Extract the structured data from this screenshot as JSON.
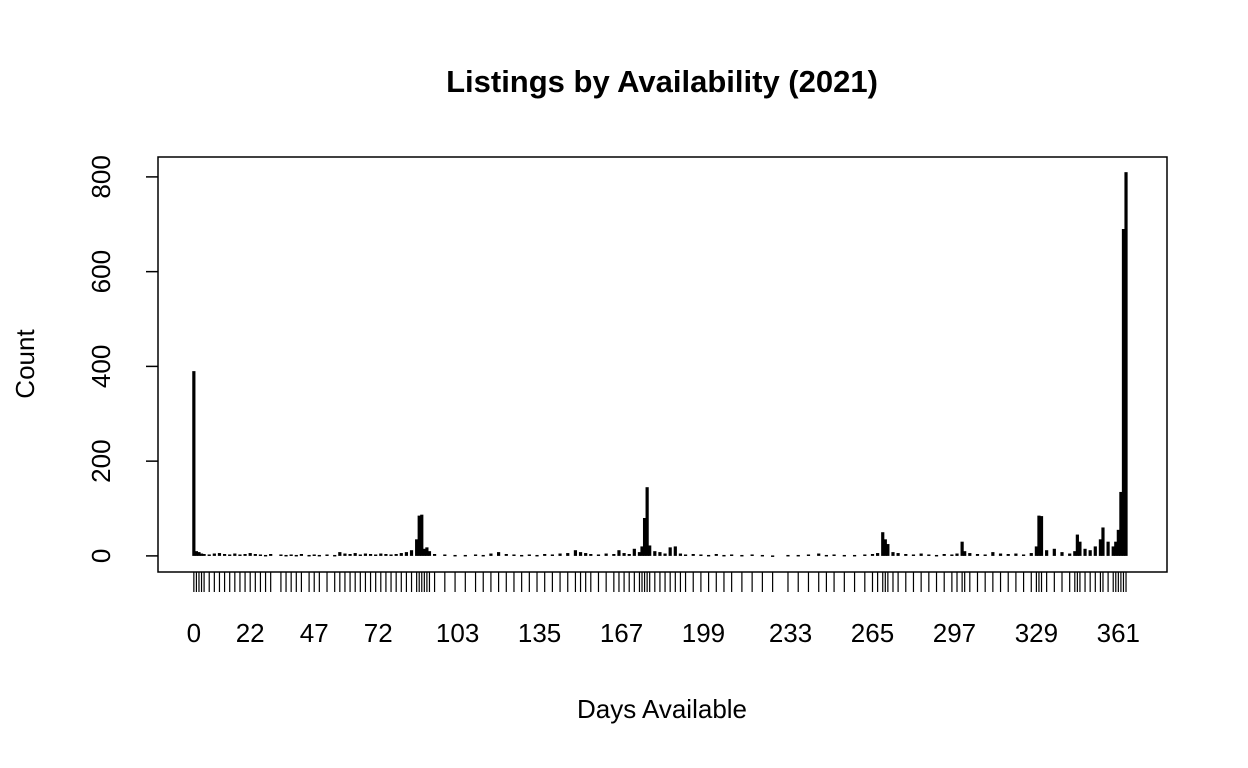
{
  "chart_data": {
    "type": "bar",
    "title": "Listings by Availability (2021)",
    "x_label": "Days Available",
    "y_label": "Count",
    "x": [
      0,
      1,
      2,
      3,
      4,
      6,
      8,
      10,
      12,
      14,
      16,
      18,
      20,
      22,
      24,
      26,
      28,
      30,
      34,
      36,
      38,
      40,
      42,
      45,
      47,
      49,
      52,
      55,
      57,
      59,
      61,
      63,
      65,
      67,
      69,
      71,
      73,
      75,
      77,
      79,
      81,
      83,
      85,
      87,
      88,
      89,
      90,
      91,
      92,
      94,
      98,
      102,
      106,
      110,
      113,
      116,
      119,
      122,
      125,
      128,
      131,
      134,
      137,
      140,
      143,
      146,
      149,
      151,
      153,
      155,
      158,
      161,
      164,
      166,
      168,
      170,
      172,
      174,
      175,
      176,
      177,
      178,
      180,
      182,
      184,
      186,
      188,
      190,
      192,
      195,
      198,
      201,
      204,
      207,
      210,
      214,
      218,
      222,
      226,
      232,
      236,
      240,
      244,
      247,
      250,
      254,
      258,
      262,
      265,
      267,
      269,
      270,
      271,
      273,
      275,
      278,
      281,
      284,
      287,
      290,
      293,
      296,
      298,
      300,
      301,
      303,
      306,
      309,
      312,
      315,
      318,
      321,
      324,
      327,
      329,
      330,
      331,
      333,
      336,
      339,
      342,
      344,
      345,
      346,
      348,
      350,
      352,
      354,
      355,
      357,
      359,
      360,
      361,
      362,
      363,
      364
    ],
    "values": [
      390,
      10,
      8,
      5,
      4,
      3,
      5,
      6,
      4,
      3,
      5,
      3,
      4,
      6,
      4,
      3,
      2,
      4,
      3,
      2,
      3,
      2,
      4,
      2,
      3,
      2,
      3,
      2,
      8,
      5,
      4,
      6,
      3,
      5,
      4,
      3,
      5,
      4,
      3,
      4,
      6,
      8,
      12,
      35,
      85,
      87,
      15,
      18,
      10,
      4,
      3,
      2,
      2,
      3,
      2,
      5,
      8,
      4,
      3,
      2,
      3,
      2,
      4,
      3,
      5,
      6,
      12,
      8,
      6,
      4,
      3,
      5,
      4,
      12,
      6,
      4,
      15,
      8,
      20,
      80,
      145,
      22,
      10,
      8,
      5,
      18,
      20,
      5,
      3,
      4,
      3,
      2,
      4,
      2,
      3,
      2,
      3,
      2,
      1,
      2,
      2,
      3,
      5,
      2,
      3,
      2,
      2,
      3,
      4,
      6,
      50,
      35,
      25,
      8,
      6,
      4,
      3,
      5,
      3,
      2,
      4,
      3,
      5,
      30,
      10,
      6,
      4,
      3,
      8,
      5,
      4,
      5,
      3,
      6,
      20,
      85,
      84,
      12,
      15,
      8,
      5,
      10,
      45,
      30,
      15,
      12,
      20,
      35,
      60,
      30,
      20,
      30,
      55,
      135,
      690,
      810
    ],
    "color": "#000000",
    "xlim": [
      -14,
      380
    ],
    "xticks": [
      0,
      22,
      47,
      72,
      103,
      135,
      167,
      199,
      233,
      265,
      297,
      329,
      361
    ],
    "ylim": [
      -34,
      842
    ],
    "yticks": [
      0,
      200,
      400,
      600,
      800
    ]
  }
}
